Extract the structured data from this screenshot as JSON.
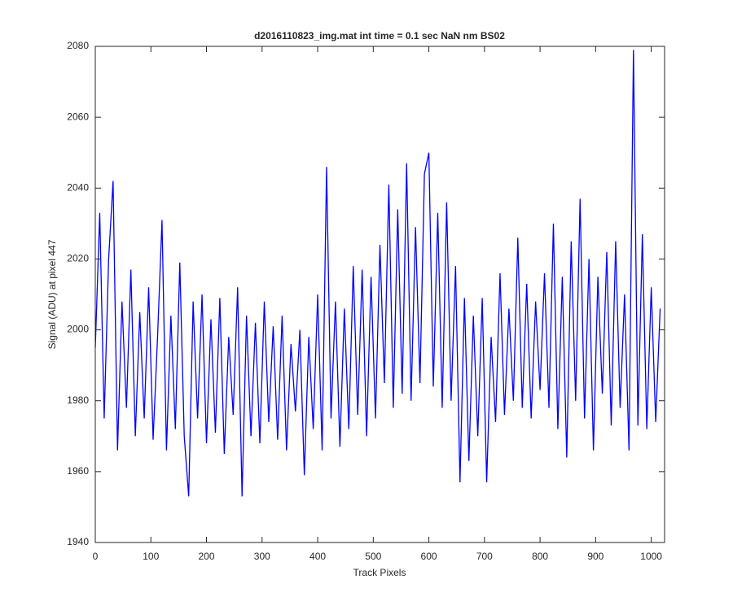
{
  "chart_data": {
    "type": "line",
    "title": "d2016110823_img.mat int time = 0.1 sec  NaN nm BS02",
    "x_label": "Track Pixels",
    "y_label": "Signal (ADU) at pixel 447",
    "xlim": [
      0,
      1024
    ],
    "ylim": [
      1940,
      2080
    ],
    "xticks": [
      0,
      100,
      200,
      300,
      400,
      500,
      600,
      700,
      800,
      900,
      1000
    ],
    "yticks": [
      1940,
      1960,
      1980,
      2000,
      2020,
      2040,
      2060,
      2080
    ],
    "grid": false,
    "x": [
      0,
      8,
      16,
      24,
      32,
      40,
      48,
      56,
      64,
      72,
      80,
      88,
      96,
      104,
      112,
      120,
      128,
      136,
      144,
      152,
      160,
      168,
      176,
      184,
      192,
      200,
      208,
      216,
      224,
      232,
      240,
      248,
      256,
      264,
      272,
      280,
      288,
      296,
      304,
      312,
      320,
      328,
      336,
      344,
      352,
      360,
      368,
      376,
      384,
      392,
      400,
      408,
      416,
      424,
      432,
      440,
      448,
      456,
      464,
      472,
      480,
      488,
      496,
      504,
      512,
      520,
      528,
      536,
      544,
      552,
      560,
      568,
      576,
      584,
      592,
      600,
      608,
      616,
      624,
      632,
      640,
      648,
      656,
      664,
      672,
      680,
      688,
      696,
      704,
      712,
      720,
      728,
      736,
      744,
      752,
      760,
      768,
      776,
      784,
      792,
      800,
      808,
      816,
      824,
      832,
      840,
      848,
      856,
      864,
      872,
      880,
      888,
      896,
      904,
      912,
      920,
      928,
      936,
      944,
      952,
      960,
      968,
      976,
      984,
      992,
      1000,
      1008,
      1016
    ],
    "series": [
      {
        "color": "#0000ff",
        "values": [
          1995,
          2033,
          1975,
          2020,
          2042,
          1966,
          2008,
          1978,
          2017,
          1970,
          2005,
          1975,
          2012,
          1969,
          1998,
          2031,
          1966,
          2004,
          1972,
          2019,
          1970,
          1953,
          2008,
          1975,
          2010,
          1968,
          2003,
          1971,
          2009,
          1965,
          1998,
          1976,
          2012,
          1953,
          2004,
          1970,
          2002,
          1968,
          2008,
          1974,
          2001,
          1969,
          2004,
          1966,
          1996,
          1977,
          2000,
          1959,
          1998,
          1972,
          2010,
          1966,
          2046,
          1975,
          2008,
          1967,
          2006,
          1972,
          2018,
          1976,
          2017,
          1970,
          2015,
          1975,
          2024,
          1985,
          2041,
          1978,
          2034,
          1982,
          2047,
          1980,
          2029,
          1985,
          2044,
          2050,
          1984,
          2033,
          1978,
          2036,
          1980,
          2018,
          1957,
          2009,
          1963,
          2004,
          1970,
          2009,
          1957,
          1998,
          1974,
          2016,
          1976,
          2006,
          1980,
          2026,
          1978,
          2013,
          1975,
          2008,
          1983,
          2016,
          1978,
          2030,
          1972,
          2015,
          1964,
          2025,
          1980,
          2037,
          1975,
          2020,
          1966,
          2015,
          1982,
          2022,
          1973,
          2025,
          1978,
          2010,
          1966,
          2079,
          1973,
          2027,
          1972,
          2012,
          1974,
          2006
        ]
      }
    ]
  }
}
